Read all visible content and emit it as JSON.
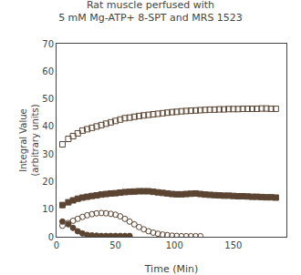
{
  "chart_data": {
    "type": "scatter",
    "title": "Rat muscle perfused with\n5 mM Mg-ATP+ 8-SPT and MRS 1523",
    "x_label": "Time (Min)",
    "y_label": "Integral Value\n(arbitrary units)",
    "xlim": [
      0,
      195
    ],
    "ylim": [
      0,
      70
    ],
    "xticks": [
      0,
      50,
      100,
      150
    ],
    "yticks": [
      0,
      10,
      20,
      30,
      40,
      50,
      60,
      70
    ],
    "grid": false,
    "series": [
      {
        "color": "#5c4432",
        "marker": "square-open",
        "x": [
          5,
          10,
          14,
          18,
          22,
          26,
          30,
          34,
          38,
          42,
          46,
          50,
          54,
          58,
          62,
          66,
          70,
          74,
          78,
          82,
          86,
          90,
          94,
          98,
          102,
          106,
          110,
          114,
          118,
          122,
          126,
          130,
          134,
          138,
          142,
          146,
          150,
          154,
          158,
          162,
          166,
          170,
          174,
          178,
          182,
          186
        ],
        "values": [
          33.5,
          35.5,
          36.5,
          37.5,
          38.5,
          39.0,
          39.5,
          40.0,
          40.5,
          41.0,
          41.5,
          42.0,
          42.5,
          43.0,
          43.2,
          43.5,
          43.8,
          44.0,
          44.2,
          44.4,
          44.6,
          44.8,
          45.0,
          45.2,
          45.3,
          45.5,
          45.6,
          45.7,
          45.8,
          45.9,
          46.0,
          46.1,
          46.1,
          46.2,
          46.2,
          46.3,
          46.3,
          46.3,
          46.4,
          46.4,
          46.4,
          46.4,
          46.5,
          46.5,
          46.4,
          46.4
        ]
      },
      {
        "color": "#5c4432",
        "marker": "square",
        "x": [
          5,
          10,
          14,
          18,
          22,
          26,
          30,
          34,
          38,
          42,
          46,
          50,
          54,
          58,
          62,
          66,
          70,
          74,
          78,
          82,
          86,
          90,
          94,
          98,
          102,
          106,
          110,
          114,
          118,
          122,
          126,
          130,
          134,
          138,
          142,
          146,
          150,
          154,
          158,
          162,
          166,
          170,
          174,
          178,
          182,
          186
        ],
        "values": [
          11.5,
          12.5,
          13.2,
          13.8,
          14.2,
          14.5,
          14.8,
          15.0,
          15.3,
          15.5,
          15.7,
          15.8,
          16.0,
          16.2,
          16.3,
          16.4,
          16.5,
          16.5,
          16.5,
          16.3,
          16.1,
          15.9,
          15.7,
          15.5,
          15.4,
          15.4,
          15.5,
          15.6,
          15.7,
          15.5,
          15.3,
          15.2,
          15.1,
          15.0,
          14.9,
          14.9,
          14.8,
          14.7,
          14.7,
          14.6,
          14.5,
          14.5,
          14.4,
          14.3,
          14.3,
          14.2
        ]
      },
      {
        "color": "#5c4432",
        "marker": "circle-open",
        "x": [
          5,
          10,
          14,
          18,
          22,
          26,
          30,
          34,
          38,
          42,
          46,
          50,
          54,
          58,
          62,
          66,
          70,
          74,
          78,
          82,
          86,
          90,
          94,
          98,
          102,
          106,
          110,
          114,
          118,
          122
        ],
        "values": [
          4.0,
          5.0,
          5.8,
          6.5,
          7.2,
          7.8,
          8.2,
          8.5,
          8.6,
          8.5,
          8.3,
          8.0,
          7.4,
          6.5,
          5.5,
          4.5,
          3.5,
          2.7,
          2.0,
          1.5,
          1.1,
          0.8,
          0.6,
          0.4,
          0.3,
          0.2,
          0.2,
          0.2,
          0.2,
          0.2
        ]
      },
      {
        "color": "#5c4432",
        "marker": "circle",
        "x": [
          5,
          10,
          14,
          18,
          22,
          26,
          30,
          34,
          38,
          42,
          46,
          50,
          54,
          58,
          62
        ],
        "values": [
          5.5,
          4.5,
          3.2,
          2.0,
          1.2,
          0.7,
          0.5,
          0.4,
          0.3,
          0.3,
          0.3,
          0.3,
          0.3,
          0.3,
          0.3
        ]
      }
    ]
  }
}
